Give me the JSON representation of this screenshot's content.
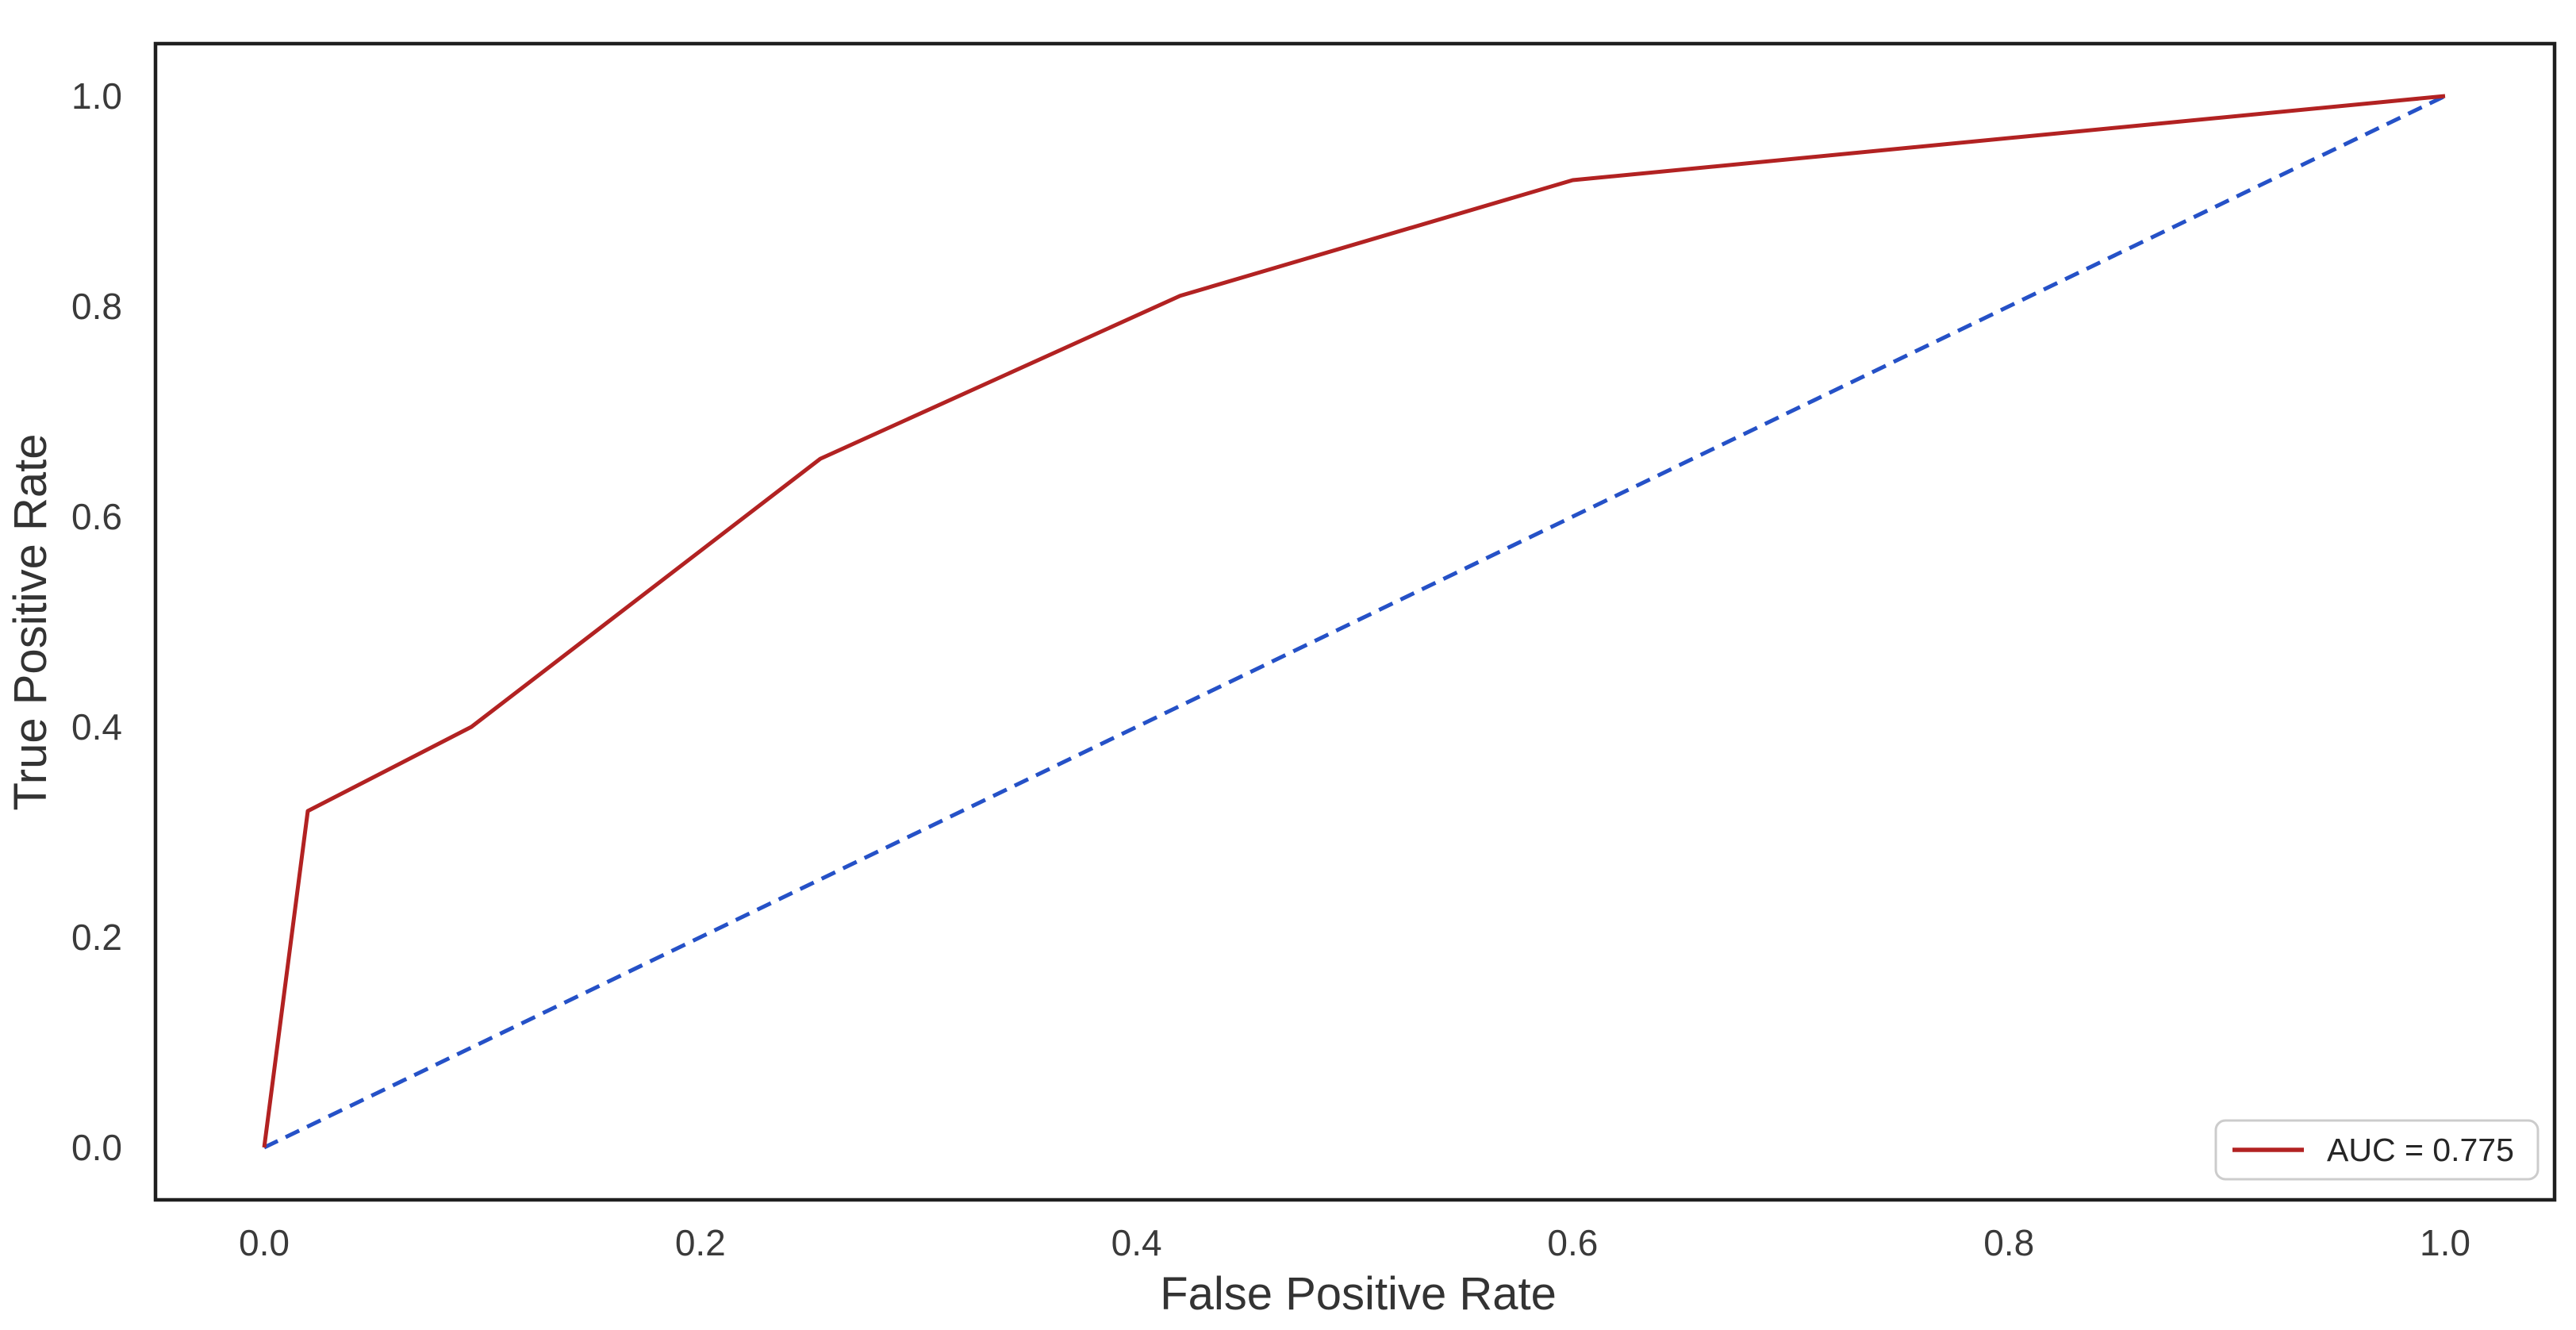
{
  "chart_data": {
    "type": "line",
    "title": "",
    "xlabel": "False Positive Rate",
    "ylabel": "True Positive Rate",
    "xlim": [
      -0.05,
      1.05
    ],
    "ylim": [
      -0.05,
      1.05
    ],
    "x_ticks": [
      0.0,
      0.2,
      0.4,
      0.6,
      0.8,
      1.0
    ],
    "y_ticks": [
      0.0,
      0.2,
      0.4,
      0.6,
      0.8,
      1.0
    ],
    "tick_decimals": 1,
    "grid": false,
    "legend_position": "lower right",
    "auc": 0.775,
    "series": [
      {
        "name": "roc-curve",
        "legend_label": "AUC = 0.775",
        "color": "#b22222",
        "style": "solid",
        "x": [
          0.0,
          0.02,
          0.095,
          0.255,
          0.42,
          0.6,
          1.0
        ],
        "y": [
          0.0,
          0.32,
          0.4,
          0.655,
          0.81,
          0.92,
          1.0
        ]
      },
      {
        "name": "chance-diagonal",
        "legend_label": null,
        "color": "#2551c7",
        "style": "dashed",
        "x": [
          0.0,
          1.0
        ],
        "y": [
          0.0,
          1.0
        ]
      }
    ],
    "colors": {
      "spine": "#1f1f1f",
      "tick_text": "#3a3a3a",
      "axis_label_text": "#333333",
      "legend_border": "#cccccc",
      "legend_background": "#ffffff",
      "plot_background": "#ffffff"
    }
  }
}
